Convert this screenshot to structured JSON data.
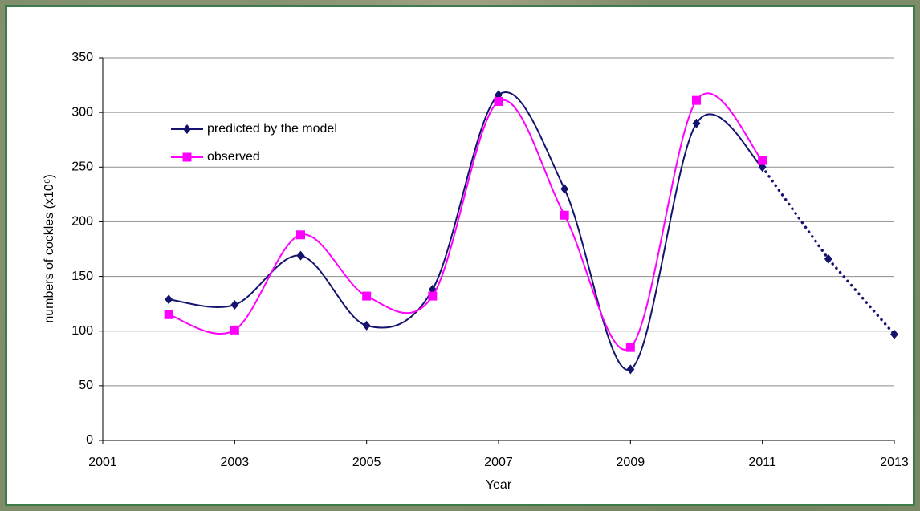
{
  "chart_data": {
    "type": "line",
    "x_label": "Year",
    "y_label": "numbers of cockles (x10⁶)",
    "xlim": [
      2001,
      2013
    ],
    "xticks": [
      2001,
      2003,
      2005,
      2007,
      2009,
      2011,
      2013
    ],
    "ylim": [
      0,
      350
    ],
    "yticks": [
      0,
      50,
      100,
      150,
      200,
      250,
      300,
      350
    ],
    "grid": true,
    "legend": "upper left",
    "smooth": true,
    "series": [
      {
        "name": "predicted by the model",
        "color": "#14146e",
        "marker": "diamond",
        "dotted_after": 2011,
        "x": [
          2002,
          2003,
          2004,
          2005,
          2006,
          2007,
          2008,
          2009,
          2010,
          2011,
          2012,
          2013
        ],
        "values": [
          129,
          124,
          169,
          105,
          138,
          316,
          230,
          65,
          290,
          250,
          166,
          97
        ]
      },
      {
        "name": "observed",
        "color": "#ff00ff",
        "marker": "square",
        "x": [
          2002,
          2003,
          2004,
          2005,
          2006,
          2007,
          2008,
          2009,
          2010,
          2011
        ],
        "values": [
          115,
          101,
          188,
          132,
          132,
          310,
          206,
          85,
          311,
          256
        ]
      }
    ]
  }
}
